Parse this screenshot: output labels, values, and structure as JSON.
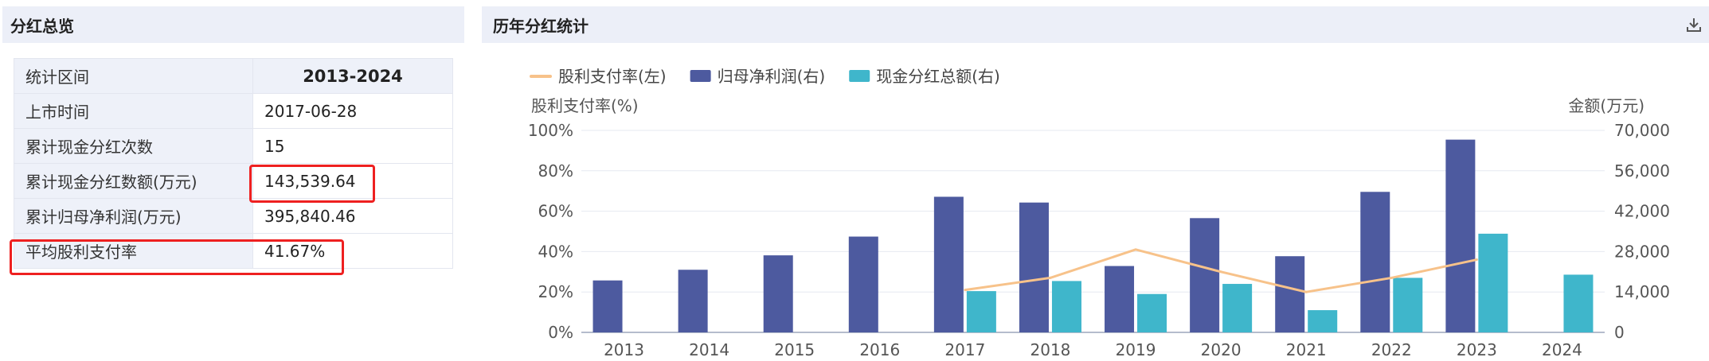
{
  "overview": {
    "title": "分红总览",
    "rows": [
      {
        "label": "统计区间",
        "value": "2013-2024"
      },
      {
        "label": "上市时间",
        "value": "2017-06-28"
      },
      {
        "label": "累计现金分红次数",
        "value": "15"
      },
      {
        "label": "累计现金分红数额(万元)",
        "value": "143,539.64"
      },
      {
        "label": "累计归母净利润(万元)",
        "value": "395,840.46"
      },
      {
        "label": "平均股利支付率",
        "value": "41.67%"
      }
    ],
    "highlight_color": "#ee2020"
  },
  "stats": {
    "title": "历年分红统计",
    "download_icon": "download-icon"
  },
  "chart_data": {
    "type": "bar",
    "categories": [
      "2013",
      "2014",
      "2015",
      "2016",
      "2017",
      "2018",
      "2019",
      "2020",
      "2021",
      "2022",
      "2023",
      "2024"
    ],
    "series": [
      {
        "name": "股利支付率(左)",
        "kind": "line",
        "axis": "left",
        "color": "#f7c28a",
        "values": [
          null,
          null,
          null,
          null,
          21,
          27,
          41,
          30,
          20,
          27,
          36,
          null
        ]
      },
      {
        "name": "归母净利润(右)",
        "kind": "bar",
        "axis": "right",
        "color": "#4d5a9f",
        "values": [
          18000,
          21700,
          26700,
          33200,
          47000,
          45000,
          23000,
          39600,
          26400,
          48700,
          66800,
          null
        ]
      },
      {
        "name": "现金分红总额(右)",
        "kind": "bar",
        "axis": "right",
        "color": "#3fb6cb",
        "values": [
          null,
          null,
          null,
          null,
          14300,
          17800,
          13300,
          16800,
          7700,
          18900,
          34200,
          20000
        ]
      }
    ],
    "ylabel_left": "股利支付率(%)",
    "ylabel_right": "金额(万元)",
    "ylim_left": [
      0,
      100
    ],
    "ylim_right": [
      0,
      70000
    ],
    "yticks_left": [
      "0%",
      "20%",
      "40%",
      "60%",
      "80%",
      "100%"
    ],
    "yticks_right": [
      "0",
      "14,000",
      "28,000",
      "42,000",
      "56,000",
      "70,000"
    ],
    "legend_position": "top-left",
    "grid": true
  }
}
